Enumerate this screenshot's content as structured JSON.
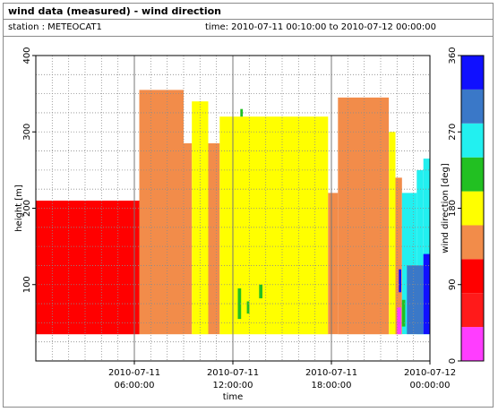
{
  "title": "wind data (measured) - wind direction",
  "station_text": "station : METEOCAT1",
  "time_text": "time: 2010-07-11 00:10:00 to 2010-07-12 00:00:00",
  "chart_data": {
    "type": "heatmap",
    "xlabel": "time",
    "ylabel": "height [m]",
    "colorbar_label": "wind direction [deg]",
    "x_range_hours": [
      0,
      24
    ],
    "ylim": [
      0,
      400
    ],
    "y_ticks": [
      100,
      200,
      300,
      400
    ],
    "x_ticks": [
      {
        "hours": 6,
        "line1": "2010-07-11",
        "line2": "06:00:00"
      },
      {
        "hours": 12,
        "line1": "2010-07-11",
        "line2": "12:00:00"
      },
      {
        "hours": 18,
        "line1": "2010-07-11",
        "line2": "18:00:00"
      },
      {
        "hours": 24,
        "line1": "2010-07-12",
        "line2": "00:00:00"
      }
    ],
    "colorbar": {
      "range": [
        0,
        360
      ],
      "ticks": [
        0,
        90,
        180,
        270,
        360
      ],
      "bins": [
        {
          "from": 0,
          "to": 45,
          "color": "#ff3dff"
        },
        {
          "from": 45,
          "to": 90,
          "color": "#ff1a1a"
        },
        {
          "from": 90,
          "to": 135,
          "color": "#ff0000"
        },
        {
          "from": 135,
          "to": 180,
          "color": "#f28c4a"
        },
        {
          "from": 180,
          "to": 225,
          "color": "#ffff00"
        },
        {
          "from": 225,
          "to": 270,
          "color": "#22c022"
        },
        {
          "from": 270,
          "to": 315,
          "color": "#22f0f0"
        },
        {
          "from": 315,
          "to": 360,
          "color": "#3a78c8"
        },
        {
          "from": 360,
          "to": 405,
          "color": "#1010ff"
        }
      ]
    },
    "series": [
      {
        "start_h": 0.0,
        "end_h": 6.3,
        "bottom_m": 35,
        "top_m": 210,
        "direction_deg": 112,
        "color": "#ff0000"
      },
      {
        "start_h": 6.3,
        "end_h": 9.0,
        "bottom_m": 35,
        "top_m": 355,
        "direction_deg": 158,
        "color": "#f28c4a"
      },
      {
        "start_h": 9.0,
        "end_h": 9.5,
        "bottom_m": 35,
        "top_m": 285,
        "direction_deg": 158,
        "color": "#f28c4a"
      },
      {
        "start_h": 9.5,
        "end_h": 10.5,
        "bottom_m": 35,
        "top_m": 340,
        "direction_deg": 202,
        "color": "#ffff00"
      },
      {
        "start_h": 10.5,
        "end_h": 11.2,
        "bottom_m": 35,
        "top_m": 285,
        "direction_deg": 158,
        "color": "#f28c4a"
      },
      {
        "start_h": 11.2,
        "end_h": 17.8,
        "bottom_m": 35,
        "top_m": 320,
        "direction_deg": 202,
        "color": "#ffff00"
      },
      {
        "start_h": 17.8,
        "end_h": 18.4,
        "bottom_m": 35,
        "top_m": 220,
        "direction_deg": 158,
        "color": "#f28c4a"
      },
      {
        "start_h": 18.4,
        "end_h": 21.5,
        "bottom_m": 35,
        "top_m": 345,
        "direction_deg": 158,
        "color": "#f28c4a"
      },
      {
        "start_h": 21.5,
        "end_h": 21.9,
        "bottom_m": 35,
        "top_m": 300,
        "direction_deg": 202,
        "color": "#ffff00"
      },
      {
        "start_h": 21.9,
        "end_h": 22.3,
        "bottom_m": 35,
        "top_m": 240,
        "direction_deg": 158,
        "color": "#f28c4a"
      },
      {
        "start_h": 22.3,
        "end_h": 23.2,
        "bottom_m": 35,
        "top_m": 220,
        "direction_deg": 292,
        "color": "#22f0f0"
      },
      {
        "start_h": 23.2,
        "end_h": 23.6,
        "bottom_m": 35,
        "top_m": 250,
        "direction_deg": 292,
        "color": "#22f0f0"
      },
      {
        "start_h": 23.6,
        "end_h": 24.0,
        "bottom_m": 35,
        "top_m": 265,
        "direction_deg": 292,
        "color": "#22f0f0"
      },
      {
        "start_h": 22.6,
        "end_h": 23.6,
        "bottom_m": 35,
        "top_m": 125,
        "direction_deg": 338,
        "color": "#3a78c8"
      },
      {
        "start_h": 23.6,
        "end_h": 24.0,
        "bottom_m": 35,
        "top_m": 140,
        "direction_deg": 382,
        "color": "#1010ff"
      },
      {
        "start_h": 22.0,
        "end_h": 22.25,
        "bottom_m": 35,
        "top_m": 70,
        "direction_deg": 22,
        "color": "#ff3dff"
      },
      {
        "start_h": 22.1,
        "end_h": 22.25,
        "bottom_m": 90,
        "top_m": 120,
        "direction_deg": 382,
        "color": "#1010ff"
      },
      {
        "start_h": 22.3,
        "end_h": 22.5,
        "bottom_m": 45,
        "top_m": 80,
        "direction_deg": 248,
        "color": "#22c022"
      },
      {
        "start_h": 12.3,
        "end_h": 12.5,
        "bottom_m": 55,
        "top_m": 95,
        "direction_deg": 248,
        "color": "#22c022"
      },
      {
        "start_h": 12.85,
        "end_h": 13.0,
        "bottom_m": 62,
        "top_m": 78,
        "direction_deg": 248,
        "color": "#22c022"
      },
      {
        "start_h": 13.6,
        "end_h": 13.8,
        "bottom_m": 82,
        "top_m": 100,
        "direction_deg": 248,
        "color": "#22c022"
      },
      {
        "start_h": 12.45,
        "end_h": 12.6,
        "bottom_m": 320,
        "top_m": 330,
        "direction_deg": 248,
        "color": "#22c022"
      }
    ]
  }
}
